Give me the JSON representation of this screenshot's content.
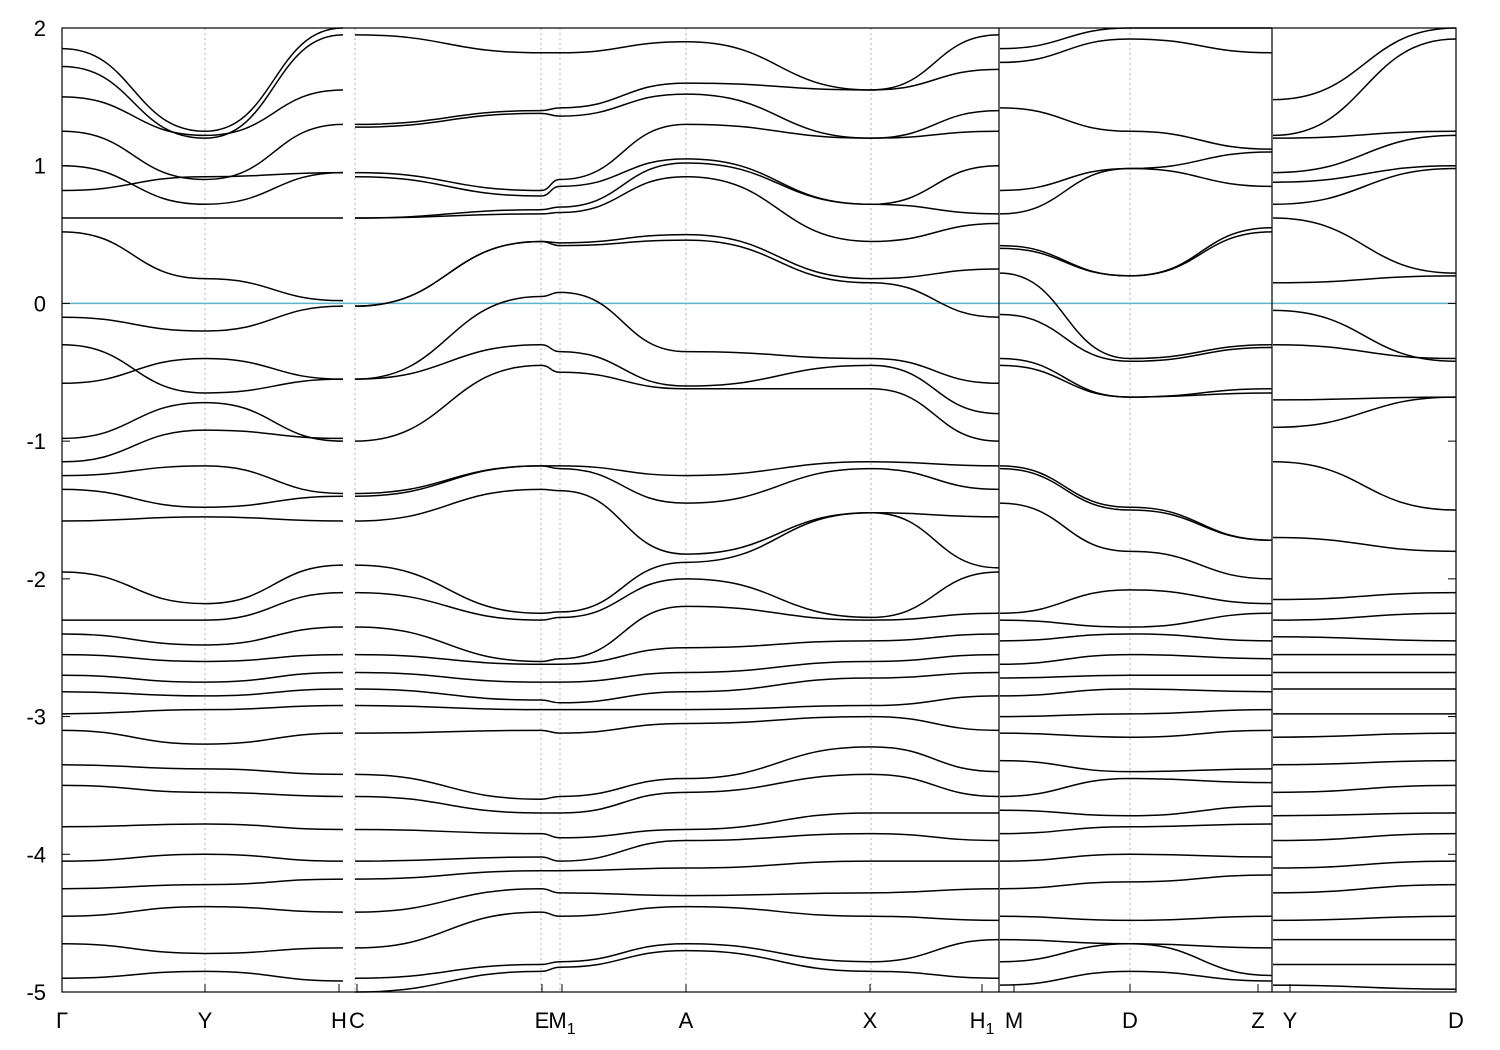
{
  "chart_data": {
    "type": "line",
    "title": "",
    "xlabel": "",
    "ylabel": "",
    "ylim": [
      -5,
      2
    ],
    "y_ticks": [
      2,
      1,
      0,
      -1,
      -2,
      -3,
      -4,
      -5
    ],
    "y_tick_labels": [
      "2",
      "1",
      "0",
      "-1",
      "-2",
      "-3",
      "-4",
      "-5"
    ],
    "fermi_level": 0,
    "fermi_color": "#5ab4cc",
    "grid": "vertical dotted at high-symmetry points",
    "segments": [
      {
        "path": [
          "Γ",
          "Y",
          "H"
        ],
        "x": [
          "Γ",
          "Y",
          "H"
        ],
        "bands": [
          [
            1.85,
            1.25,
            2.0
          ],
          [
            1.72,
            1.2,
            1.95
          ],
          [
            1.5,
            1.22,
            1.55
          ],
          [
            1.25,
            0.9,
            1.3
          ],
          [
            1.0,
            0.72,
            0.95
          ],
          [
            0.82,
            0.92,
            0.95
          ],
          [
            0.62,
            0.62,
            0.62
          ],
          [
            0.52,
            0.18,
            0.02
          ],
          [
            -0.1,
            -0.2,
            -0.02
          ],
          [
            -0.3,
            -0.65,
            -0.55
          ],
          [
            -0.58,
            -0.4,
            -0.55
          ],
          [
            -0.98,
            -0.72,
            -1.0
          ],
          [
            -1.15,
            -0.92,
            -0.98
          ],
          [
            -1.25,
            -1.18,
            -1.38
          ],
          [
            -1.35,
            -1.48,
            -1.4
          ],
          [
            -1.58,
            -1.55,
            -1.58
          ],
          [
            -1.95,
            -2.18,
            -1.9
          ],
          [
            -2.3,
            -2.3,
            -2.1
          ],
          [
            -2.4,
            -2.48,
            -2.35
          ],
          [
            -2.55,
            -2.6,
            -2.55
          ],
          [
            -2.7,
            -2.75,
            -2.68
          ],
          [
            -2.82,
            -2.85,
            -2.8
          ],
          [
            -2.98,
            -2.95,
            -2.92
          ],
          [
            -3.1,
            -3.2,
            -3.12
          ],
          [
            -3.35,
            -3.38,
            -3.42
          ],
          [
            -3.5,
            -3.55,
            -3.58
          ],
          [
            -3.8,
            -3.78,
            -3.82
          ],
          [
            -4.05,
            -4.0,
            -4.05
          ],
          [
            -4.25,
            -4.22,
            -4.18
          ],
          [
            -4.45,
            -4.38,
            -4.42
          ],
          [
            -4.65,
            -4.72,
            -4.68
          ],
          [
            -4.9,
            -4.85,
            -4.92
          ]
        ]
      },
      {
        "path": [
          "C",
          "E",
          "M1",
          "A",
          "X",
          "H1"
        ],
        "x": [
          "C",
          "E",
          "M1",
          "A",
          "X",
          "H1"
        ],
        "bands": [
          [
            1.95,
            1.82,
            1.82,
            1.9,
            1.55,
            1.95
          ],
          [
            1.3,
            1.4,
            1.42,
            1.6,
            1.55,
            1.7
          ],
          [
            1.28,
            1.38,
            1.36,
            1.52,
            1.2,
            1.4
          ],
          [
            0.95,
            0.82,
            0.9,
            1.3,
            1.2,
            1.25
          ],
          [
            0.92,
            0.78,
            0.85,
            1.05,
            0.72,
            1.0
          ],
          [
            0.62,
            0.68,
            0.7,
            1.02,
            0.72,
            0.65
          ],
          [
            0.62,
            0.65,
            0.66,
            0.92,
            0.45,
            0.58
          ],
          [
            -0.02,
            0.45,
            0.44,
            0.5,
            0.18,
            0.25
          ],
          [
            -0.02,
            0.45,
            0.42,
            0.46,
            0.15,
            -0.1
          ],
          [
            -0.55,
            0.05,
            0.08,
            -0.35,
            -0.4,
            -0.58
          ],
          [
            -0.55,
            -0.3,
            -0.35,
            -0.6,
            -0.45,
            -0.8
          ],
          [
            -1.0,
            -0.45,
            -0.5,
            -0.62,
            -0.62,
            -1.0
          ],
          [
            -1.38,
            -1.18,
            -1.18,
            -1.25,
            -1.15,
            -1.18
          ],
          [
            -1.4,
            -1.18,
            -1.2,
            -1.45,
            -1.2,
            -1.35
          ],
          [
            -1.58,
            -1.35,
            -1.36,
            -1.82,
            -1.52,
            -1.55
          ],
          [
            -1.9,
            -2.25,
            -2.24,
            -1.88,
            -1.52,
            -1.92
          ],
          [
            -2.1,
            -2.3,
            -2.28,
            -2.0,
            -2.28,
            -1.95
          ],
          [
            -2.35,
            -2.6,
            -2.58,
            -2.2,
            -2.3,
            -2.25
          ],
          [
            -2.55,
            -2.62,
            -2.62,
            -2.5,
            -2.45,
            -2.4
          ],
          [
            -2.68,
            -2.75,
            -2.75,
            -2.68,
            -2.6,
            -2.55
          ],
          [
            -2.8,
            -2.88,
            -2.9,
            -2.82,
            -2.72,
            -2.68
          ],
          [
            -2.92,
            -2.95,
            -2.95,
            -2.95,
            -2.92,
            -2.85
          ],
          [
            -3.12,
            -3.1,
            -3.12,
            -3.05,
            -3.0,
            -3.1
          ],
          [
            -3.42,
            -3.6,
            -3.58,
            -3.45,
            -3.22,
            -3.4
          ],
          [
            -3.58,
            -3.7,
            -3.7,
            -3.55,
            -3.42,
            -3.58
          ],
          [
            -3.82,
            -3.85,
            -3.88,
            -3.82,
            -3.7,
            -3.7
          ],
          [
            -4.05,
            -4.02,
            -4.05,
            -3.9,
            -3.85,
            -3.9
          ],
          [
            -4.18,
            -4.12,
            -4.12,
            -4.1,
            -4.05,
            -4.05
          ],
          [
            -4.42,
            -4.25,
            -4.28,
            -4.3,
            -4.28,
            -4.25
          ],
          [
            -4.68,
            -4.42,
            -4.45,
            -4.38,
            -4.45,
            -4.48
          ],
          [
            -4.9,
            -4.8,
            -4.78,
            -4.65,
            -4.78,
            -4.62
          ],
          [
            -5.0,
            -4.85,
            -4.82,
            -4.7,
            -4.85,
            -4.9
          ]
        ]
      },
      {
        "path": [
          "M",
          "D",
          "Z"
        ],
        "x": [
          "M",
          "D",
          "Z"
        ],
        "bands": [
          [
            1.85,
            2.0,
            2.0
          ],
          [
            1.75,
            1.92,
            1.82
          ],
          [
            1.42,
            1.25,
            1.12
          ],
          [
            0.82,
            0.98,
            1.1
          ],
          [
            0.65,
            0.98,
            0.85
          ],
          [
            0.42,
            0.2,
            0.55
          ],
          [
            0.4,
            0.2,
            0.52
          ],
          [
            0.22,
            -0.4,
            -0.3
          ],
          [
            -0.08,
            -0.42,
            -0.32
          ],
          [
            -0.4,
            -0.68,
            -0.62
          ],
          [
            -0.45,
            -0.68,
            -0.65
          ],
          [
            -1.18,
            -1.48,
            -1.72
          ],
          [
            -1.2,
            -1.5,
            -1.72
          ],
          [
            -1.45,
            -1.8,
            -2.0
          ],
          [
            -2.25,
            -2.08,
            -2.18
          ],
          [
            -2.3,
            -2.35,
            -2.25
          ],
          [
            -2.45,
            -2.4,
            -2.45
          ],
          [
            -2.62,
            -2.55,
            -2.58
          ],
          [
            -2.72,
            -2.7,
            -2.7
          ],
          [
            -2.85,
            -2.8,
            -2.82
          ],
          [
            -3.0,
            -2.98,
            -2.95
          ],
          [
            -3.12,
            -3.15,
            -3.1
          ],
          [
            -3.32,
            -3.4,
            -3.38
          ],
          [
            -3.58,
            -3.45,
            -3.48
          ],
          [
            -3.68,
            -3.72,
            -3.65
          ],
          [
            -3.85,
            -3.8,
            -3.78
          ],
          [
            -4.05,
            -4.0,
            -4.02
          ],
          [
            -4.25,
            -4.2,
            -4.15
          ],
          [
            -4.45,
            -4.48,
            -4.45
          ],
          [
            -4.62,
            -4.65,
            -4.68
          ],
          [
            -4.78,
            -4.65,
            -4.88
          ],
          [
            -4.95,
            -4.85,
            -4.92
          ]
        ]
      },
      {
        "path": [
          "Y",
          "D"
        ],
        "x": [
          "Y",
          "D"
        ],
        "bands": [
          [
            1.48,
            2.0
          ],
          [
            1.22,
            1.92
          ],
          [
            1.2,
            1.25
          ],
          [
            0.95,
            1.22
          ],
          [
            0.88,
            1.0
          ],
          [
            0.72,
            0.98
          ],
          [
            0.62,
            0.22
          ],
          [
            0.15,
            0.2
          ],
          [
            -0.05,
            -0.42
          ],
          [
            -0.3,
            -0.4
          ],
          [
            -0.7,
            -0.68
          ],
          [
            -0.9,
            -0.68
          ],
          [
            -1.15,
            -1.5
          ],
          [
            -1.7,
            -1.8
          ],
          [
            -2.15,
            -2.1
          ],
          [
            -2.3,
            -2.25
          ],
          [
            -2.42,
            -2.45
          ],
          [
            -2.55,
            -2.55
          ],
          [
            -2.68,
            -2.68
          ],
          [
            -2.8,
            -2.8
          ],
          [
            -2.98,
            -2.98
          ],
          [
            -3.15,
            -3.12
          ],
          [
            -3.35,
            -3.32
          ],
          [
            -3.55,
            -3.5
          ],
          [
            -3.72,
            -3.7
          ],
          [
            -3.9,
            -3.85
          ],
          [
            -4.1,
            -4.05
          ],
          [
            -4.28,
            -4.22
          ],
          [
            -4.48,
            -4.45
          ],
          [
            -4.62,
            -4.62
          ],
          [
            -4.8,
            -4.8
          ],
          [
            -4.95,
            -4.98
          ]
        ]
      }
    ],
    "x_tick_labels": [
      "Γ",
      "Y",
      "H",
      "C",
      "E",
      "M1",
      "A",
      "X",
      "H1",
      "M",
      "D",
      "Z",
      "Y",
      "D"
    ]
  }
}
